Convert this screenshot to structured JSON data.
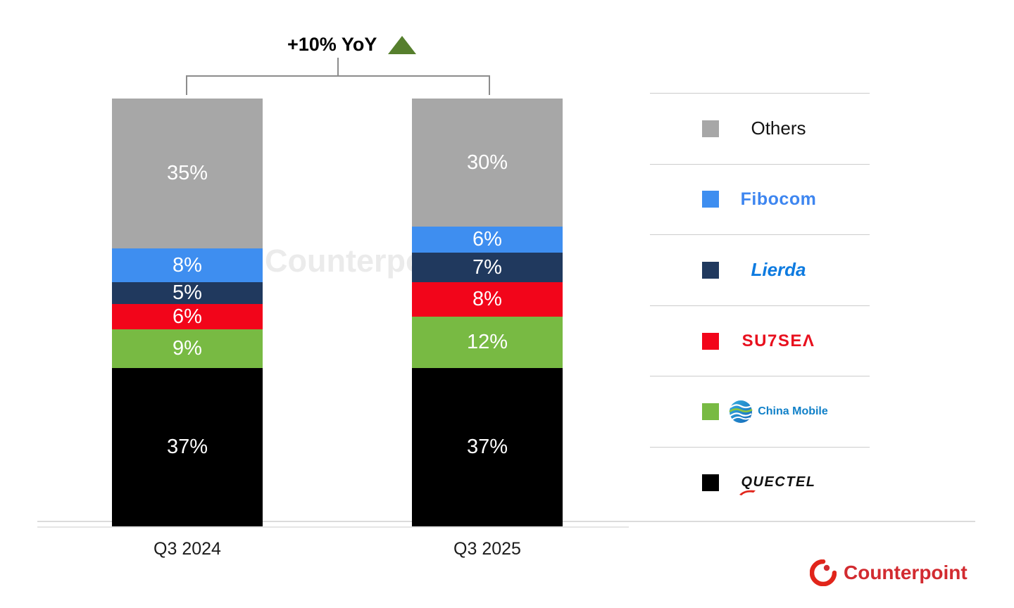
{
  "chart_data": {
    "type": "bar",
    "stacked": true,
    "unit": "%",
    "grid": false,
    "ylim": [
      0,
      100
    ],
    "legend_position": "right",
    "value_label_format": "{v}%",
    "categories": [
      "Q3 2024",
      "Q3 2025"
    ],
    "series": [
      {
        "name": "Quectel",
        "color": "#000000",
        "values": [
          37,
          37
        ]
      },
      {
        "name": "China Mobile",
        "color": "#78BA43",
        "values": [
          9,
          12
        ]
      },
      {
        "name": "Sunsea",
        "color": "#F2051A",
        "values": [
          6,
          8
        ]
      },
      {
        "name": "Lierda",
        "color": "#20395E",
        "values": [
          5,
          7
        ]
      },
      {
        "name": "Fibocom",
        "color": "#3E8EF0",
        "values": [
          8,
          6
        ]
      },
      {
        "name": "Others",
        "color": "#A7A7A7",
        "values": [
          35,
          30
        ]
      }
    ],
    "annotation": {
      "label": "+10% YoY",
      "direction": "up",
      "arrow_color": "#567F2D"
    }
  },
  "watermark": {
    "text": "Counterpoint"
  },
  "legend": {
    "items": [
      {
        "name": "Others",
        "swatch_color": "#A7A7A7",
        "display": "Others",
        "style": "others"
      },
      {
        "name": "Fibocom",
        "swatch_color": "#3E8EF0",
        "display": "Fibocom",
        "style": "fibocom"
      },
      {
        "name": "Lierda",
        "swatch_color": "#20395E",
        "display": "Lierda",
        "style": "lierda"
      },
      {
        "name": "Sunsea",
        "swatch_color": "#F2051A",
        "display": "SU7SEΛ",
        "style": "sunsea"
      },
      {
        "name": "China Mobile",
        "swatch_color": "#78BA43",
        "display": "China Mobile",
        "style": "chinamobile"
      },
      {
        "name": "Quectel",
        "swatch_color": "#000000",
        "display": "QUECTEL",
        "style": "quectel"
      }
    ]
  },
  "footer": {
    "brand": "Counterpoint",
    "brand_color": "#D22B30"
  }
}
